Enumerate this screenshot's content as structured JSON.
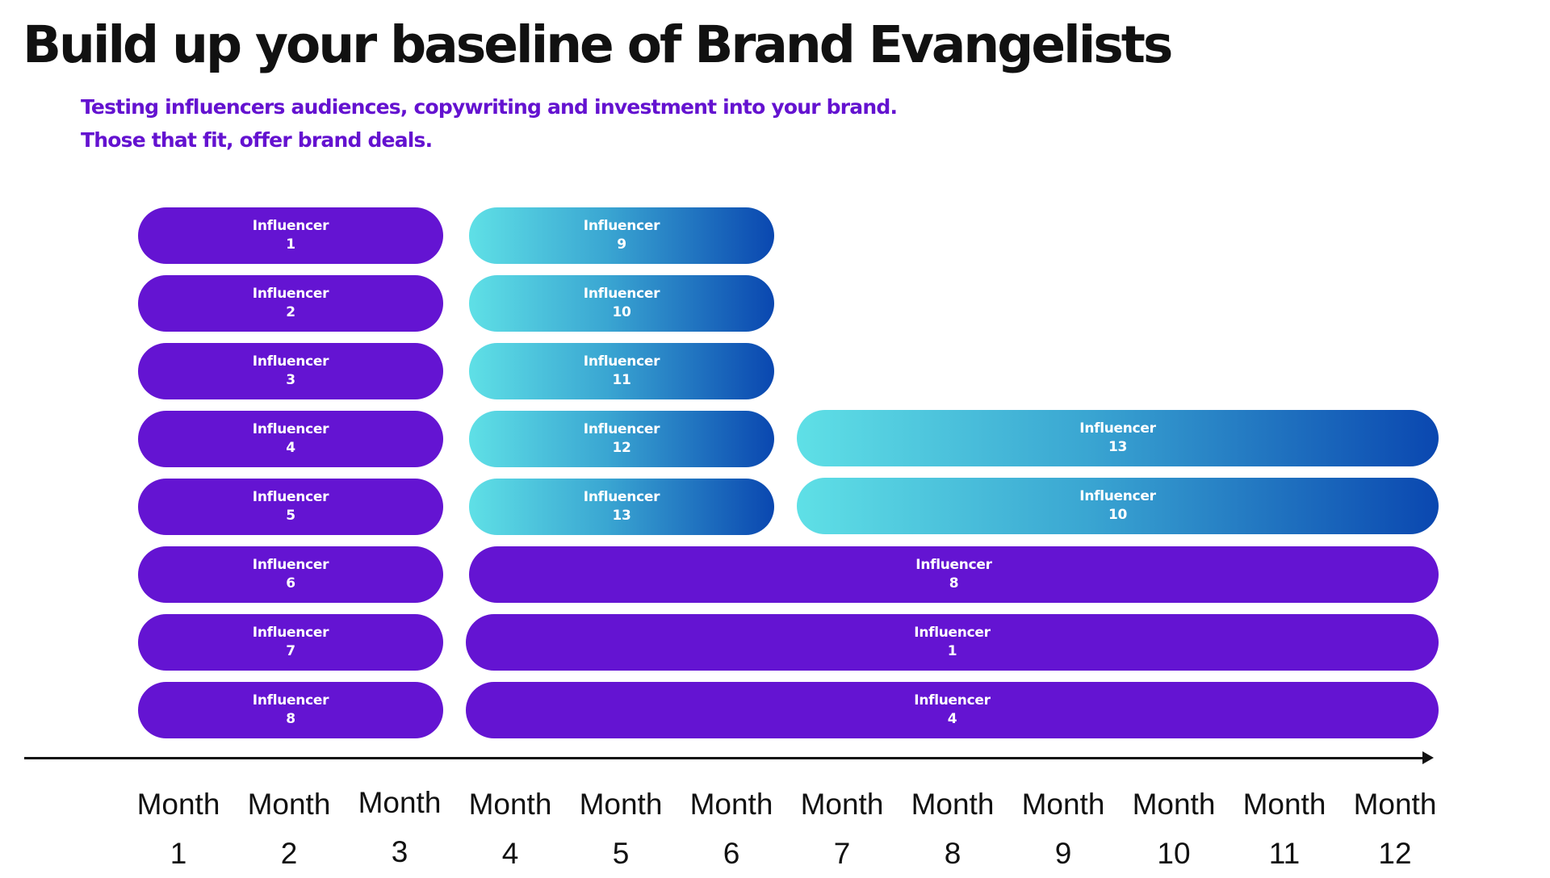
{
  "title": "Build up your baseline of Brand Evangelists",
  "subtitle": {
    "line1": "Testing influencers audiences, copywriting and investment into your brand.",
    "line2": "Those that fit, offer brand deals."
  },
  "colors": {
    "purple": "#6414d2",
    "gradient_start": "#5fe0e6",
    "gradient_end": "#0a47b0",
    "text": "#111111",
    "subtitle": "#6412d0"
  },
  "pill_word": "Influencer",
  "bars": [
    {
      "id": "1",
      "style": "purple",
      "start_month": 1,
      "end_month": 3
    },
    {
      "id": "2",
      "style": "purple",
      "start_month": 1,
      "end_month": 3
    },
    {
      "id": "3",
      "style": "purple",
      "start_month": 1,
      "end_month": 3
    },
    {
      "id": "4",
      "style": "purple",
      "start_month": 1,
      "end_month": 3
    },
    {
      "id": "5",
      "style": "purple",
      "start_month": 1,
      "end_month": 3
    },
    {
      "id": "6",
      "style": "purple",
      "start_month": 1,
      "end_month": 3
    },
    {
      "id": "7",
      "style": "purple",
      "start_month": 1,
      "end_month": 3
    },
    {
      "id": "8",
      "style": "purple",
      "start_month": 1,
      "end_month": 3
    },
    {
      "id": "9",
      "style": "gradient",
      "start_month": 4,
      "end_month": 6
    },
    {
      "id": "10",
      "style": "gradient",
      "start_month": 4,
      "end_month": 6
    },
    {
      "id": "11",
      "style": "gradient",
      "start_month": 4,
      "end_month": 6
    },
    {
      "id": "12",
      "style": "gradient",
      "start_month": 4,
      "end_month": 6
    },
    {
      "id": "13",
      "style": "gradient",
      "start_month": 4,
      "end_month": 6
    },
    {
      "id": "13",
      "style": "gradient",
      "start_month": 7,
      "end_month": 12
    },
    {
      "id": "10",
      "style": "gradient",
      "start_month": 7,
      "end_month": 12
    },
    {
      "id": "8",
      "style": "purple",
      "start_month": 4,
      "end_month": 12
    },
    {
      "id": "1",
      "style": "purple",
      "start_month": 4,
      "end_month": 12
    },
    {
      "id": "4",
      "style": "purple",
      "start_month": 4,
      "end_month": 12
    }
  ],
  "axis": {
    "word": "Month",
    "months": [
      "1",
      "2",
      "3",
      "4",
      "5",
      "6",
      "7",
      "8",
      "9",
      "10",
      "11",
      "12"
    ]
  }
}
